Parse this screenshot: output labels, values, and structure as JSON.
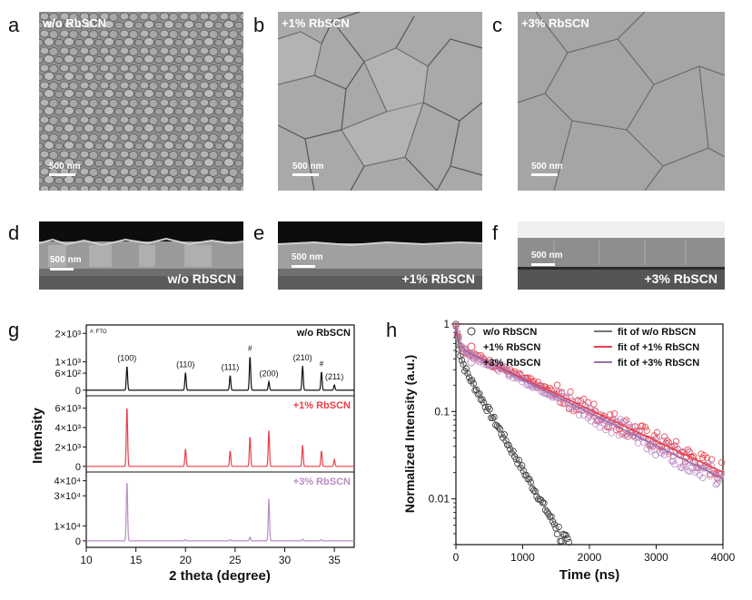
{
  "panel_labels": {
    "a": "a",
    "b": "b",
    "c": "c",
    "d": "d",
    "e": "e",
    "f": "f",
    "g": "g",
    "h": "h"
  },
  "sem_top": [
    {
      "label": "w/o RbSCN",
      "scale": "500 nm"
    },
    {
      "label": "+1% RbSCN",
      "scale": "500 nm"
    },
    {
      "label": "+3% RbSCN",
      "scale": "500 nm"
    }
  ],
  "sem_cross": [
    {
      "label": "w/o RbSCN",
      "scale": "500 nm"
    },
    {
      "label": "+1% RbSCN",
      "scale": "500 nm"
    },
    {
      "label": "+3% RbSCN",
      "scale": "500 nm"
    }
  ],
  "colors": {
    "black": "#111111",
    "red": "#e8404a",
    "purple": "#b98cc6",
    "purple_fit": "#9a6fb0"
  },
  "chart_data": [
    {
      "type": "line",
      "id": "g",
      "xlabel": "2 theta (degree)",
      "ylabel": "Intensity",
      "xlim": [
        10,
        37
      ],
      "xticks": [
        10,
        15,
        20,
        25,
        30,
        35
      ],
      "fto_note": "#: FTO",
      "series": [
        {
          "name": "w/o RbSCN",
          "color": "#111111",
          "ylim": [
            -100,
            2200
          ],
          "yticks": [
            {
              "v": 0,
              "t": "0"
            },
            {
              "v": 600,
              "t": "6×10²"
            },
            {
              "v": 1000,
              "t": "1×10³"
            },
            {
              "v": 2000,
              "t": "2×10³"
            }
          ],
          "peaks": [
            {
              "x": 14.1,
              "h": 850,
              "label": "(100)"
            },
            {
              "x": 20.0,
              "h": 620,
              "label": "(110)"
            },
            {
              "x": 24.5,
              "h": 520,
              "label": "(111)"
            },
            {
              "x": 26.5,
              "h": 1200,
              "label": "#"
            },
            {
              "x": 28.4,
              "h": 300,
              "label": "(200)"
            },
            {
              "x": 31.8,
              "h": 860,
              "label": "(210)"
            },
            {
              "x": 33.7,
              "h": 650,
              "label": "#"
            },
            {
              "x": 35.0,
              "h": 180,
              "label": "(211)"
            }
          ]
        },
        {
          "name": "+1% RbSCN",
          "color": "#e8404a",
          "ylim": [
            -300,
            7000
          ],
          "yticks": [
            {
              "v": 0,
              "t": "0"
            },
            {
              "v": 2000,
              "t": "2×10³"
            },
            {
              "v": 4000,
              "t": "4×10³"
            },
            {
              "v": 6000,
              "t": "6×10³"
            }
          ],
          "peaks": [
            {
              "x": 14.1,
              "h": 6200
            },
            {
              "x": 20.0,
              "h": 1800
            },
            {
              "x": 24.5,
              "h": 1600
            },
            {
              "x": 26.5,
              "h": 3100
            },
            {
              "x": 28.4,
              "h": 3700
            },
            {
              "x": 31.8,
              "h": 2200
            },
            {
              "x": 33.7,
              "h": 1600
            },
            {
              "x": 35.0,
              "h": 700
            }
          ]
        },
        {
          "name": "+3% RbSCN",
          "color": "#b98cc6",
          "ylim": [
            -2500,
            44000
          ],
          "yticks": [
            {
              "v": 0,
              "t": "0"
            },
            {
              "v": 10000,
              "t": "1×10⁴"
            },
            {
              "v": 30000,
              "t": "3×10⁴"
            },
            {
              "v": 40000,
              "t": "4×10⁴"
            }
          ],
          "peaks": [
            {
              "x": 14.1,
              "h": 40000
            },
            {
              "x": 20.0,
              "h": 800
            },
            {
              "x": 24.5,
              "h": 800
            },
            {
              "x": 26.5,
              "h": 2500
            },
            {
              "x": 28.4,
              "h": 28000
            },
            {
              "x": 31.8,
              "h": 1200
            },
            {
              "x": 33.7,
              "h": 900
            }
          ]
        }
      ]
    },
    {
      "type": "scatter",
      "id": "h",
      "xlabel": "Time (ns)",
      "ylabel": "Normalized Intensity (a.u.)",
      "xlim": [
        0,
        4000
      ],
      "ylim": [
        0.003,
        1
      ],
      "yscale": "log",
      "xticks": [
        0,
        1000,
        2000,
        3000,
        4000
      ],
      "yticks": [
        {
          "v": 1,
          "t": "1"
        },
        {
          "v": 0.1,
          "t": "0.1"
        },
        {
          "v": 0.01,
          "t": "0.01"
        }
      ],
      "legend": [
        {
          "text": "w/o RbSCN",
          "kind": "marker",
          "color": "#333333"
        },
        {
          "text": "+1% RbSCN",
          "kind": "marker",
          "color": "#e8404a"
        },
        {
          "text": "+3% RbSCN",
          "kind": "marker",
          "color": "#b98cc6"
        },
        {
          "text": "fit of w/o RbSCN",
          "kind": "line",
          "color": "#777777"
        },
        {
          "text": "fit of +1% RbSCN",
          "kind": "line",
          "color": "#e8404a"
        },
        {
          "text": "fit of +3% RbSCN",
          "kind": "line",
          "color": "#9a6fb0"
        }
      ],
      "series": [
        {
          "name": "w/o RbSCN",
          "color": "#333333",
          "model": {
            "a1": 0.55,
            "t1": 35,
            "a2": 0.45,
            "t2": 330
          },
          "x_end": 2750
        },
        {
          "name": "+1% RbSCN",
          "color": "#e8404a",
          "model": {
            "a1": 0.45,
            "t1": 40,
            "a2": 0.55,
            "t2": 1210
          },
          "x_end": 4000
        },
        {
          "name": "+3% RbSCN",
          "color": "#b98cc6",
          "model": {
            "a1": 0.45,
            "t1": 40,
            "a2": 0.55,
            "t2": 1150
          },
          "x_end": 4000
        }
      ]
    }
  ]
}
